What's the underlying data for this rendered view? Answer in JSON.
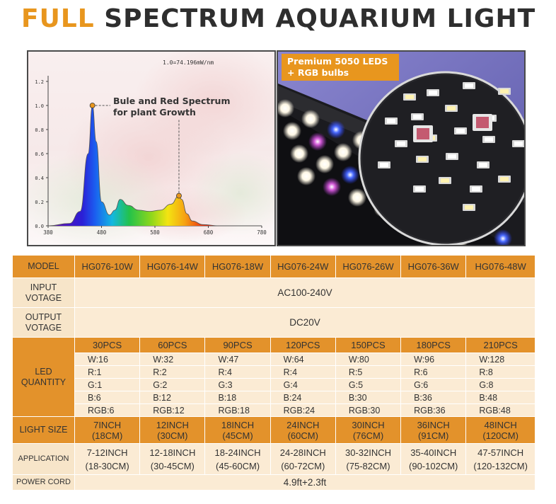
{
  "title": {
    "part1": "FULL",
    "part2": "SPECTRUM AQUARIUM LIGHT"
  },
  "spectrum_chart": {
    "formula": "1.0=74.196mW/nm",
    "annotation_line1": "Bule and Red Spectrum",
    "annotation_line2": "for plant Growth",
    "y_ticks": [
      "1.2",
      "1.0",
      "0.8",
      "0.6",
      "0.4",
      "0.2",
      "0.0"
    ],
    "x_ticks": [
      "380",
      "480",
      "580",
      "680",
      "780"
    ]
  },
  "chart_data": {
    "type": "area",
    "title": "1.0=74.196mW/nm",
    "xlim": [
      380,
      780
    ],
    "ylim": [
      0,
      1.2
    ],
    "x": [
      380,
      420,
      440,
      455,
      463,
      470,
      480,
      495,
      505,
      515,
      530,
      550,
      570,
      590,
      610,
      625,
      630,
      640,
      650,
      670,
      700,
      780
    ],
    "y": [
      0,
      0.02,
      0.12,
      0.6,
      1.0,
      0.7,
      0.2,
      0.09,
      0.13,
      0.22,
      0.17,
      0.13,
      0.12,
      0.13,
      0.18,
      0.25,
      0.22,
      0.1,
      0.04,
      0.01,
      0,
      0
    ],
    "annotations": [
      "Bule and Red Spectrum",
      "for plant Growth"
    ],
    "grid": false
  },
  "photo": {
    "badge_line1": "Premium 5050 LEDS",
    "badge_line2": "+ RGB bulbs"
  },
  "table": {
    "model_label": "MODEL",
    "models": [
      "HG076-10W",
      "HG076-14W",
      "HG076-18W",
      "HG076-24W",
      "HG076-26W",
      "HG076-36W",
      "HG076-48W"
    ],
    "input_label_1": "INPUT",
    "input_label_2": "VOTAGE",
    "input_value": "AC100-240V",
    "output_label_1": "OUTPUT",
    "output_label_2": "VOTAGE",
    "output_value": "DC20V",
    "led_label_1": "LED",
    "led_label_2": "QUANTITY",
    "pcs": [
      "30PCS",
      "60PCS",
      "90PCS",
      "120PCS",
      "150PCS",
      "180PCS",
      "210PCS"
    ],
    "w": [
      "W:16",
      "W:32",
      "W:47",
      "W:64",
      "W:80",
      "W:96",
      "W:128"
    ],
    "r": [
      "R:1",
      "R:2",
      "R:4",
      "R:4",
      "R:5",
      "R:6",
      "R:8"
    ],
    "g": [
      "G:1",
      "G:2",
      "G:3",
      "G:4",
      "G:5",
      "G:6",
      "G:8"
    ],
    "b": [
      "B:6",
      "B:12",
      "B:18",
      "B:24",
      "B:30",
      "B:36",
      "B:48"
    ],
    "rgb": [
      "RGB:6",
      "RGB:12",
      "RGB:18",
      "RGB:24",
      "RGB:30",
      "RGB:36",
      "RGB:48"
    ],
    "size_label": "LIGHT SIZE",
    "size_inch": [
      "7INCH",
      "12INCH",
      "18INCH",
      "24INCH",
      "30INCH",
      "36INCH",
      "48INCH"
    ],
    "size_cm": [
      "(18CM)",
      "(30CM)",
      "(45CM)",
      "(60CM)",
      "(76CM)",
      "(91CM)",
      "(120CM)"
    ],
    "app_label": "APPLICATION",
    "app_inch": [
      "7-12INCH",
      "12-18INCH",
      "18-24INCH",
      "24-28INCH",
      "30-32INCH",
      "35-40INCH",
      "47-57INCH"
    ],
    "app_cm": [
      "(18-30CM)",
      "(30-45CM)",
      "(45-60CM)",
      "(60-72CM)",
      "(75-82CM)",
      "(90-102CM)",
      "(120-132CM)"
    ],
    "cord_label": "POWER CORD",
    "cord_value": "4.9ft+2.3ft"
  },
  "colors": {
    "accent": "#E3922B",
    "light_fill": "#FBEBD4",
    "title_dark": "#2E2E2E"
  }
}
